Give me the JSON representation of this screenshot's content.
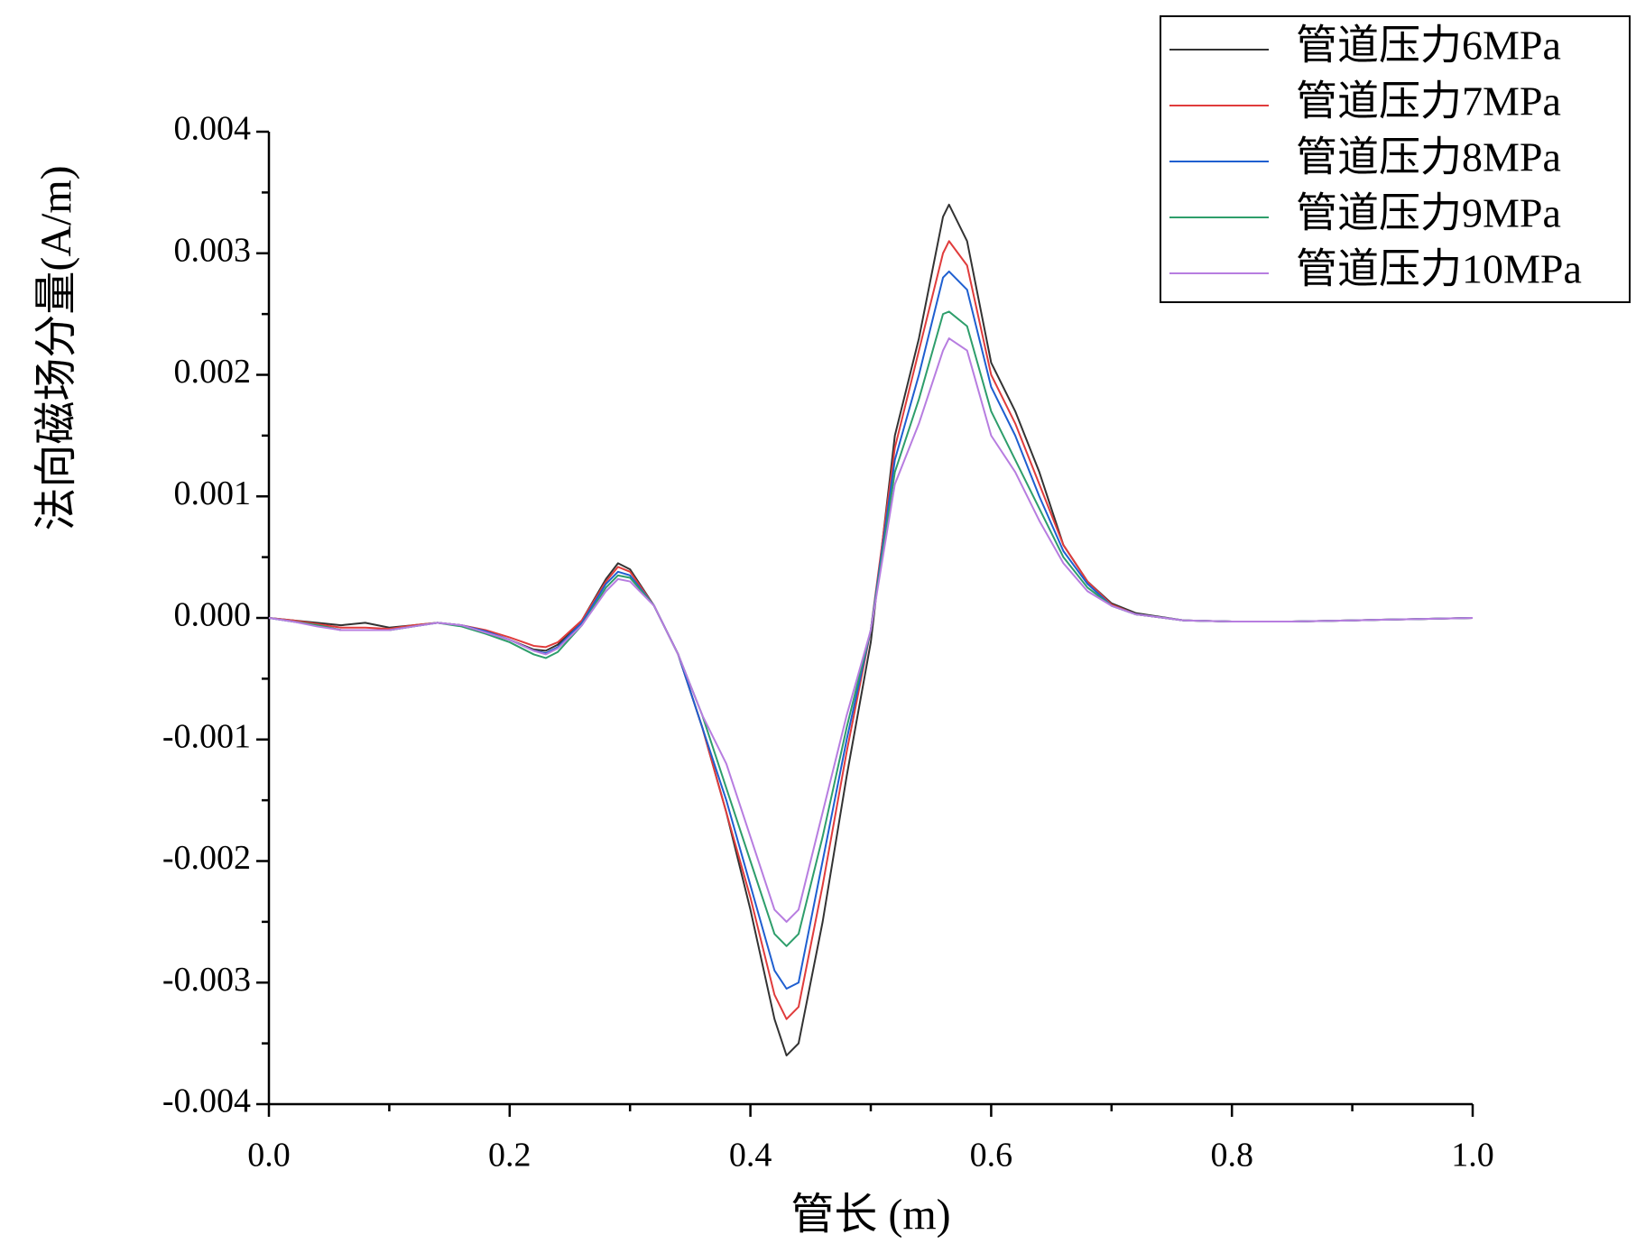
{
  "chart_data": {
    "type": "line",
    "x_label": "管长 (m)",
    "y_label": "法向磁场分量(A/m)",
    "xlim": [
      0,
      1
    ],
    "ylim": [
      -0.004,
      0.004
    ],
    "xticks": [
      {
        "value": 0,
        "label": "0.0"
      },
      0.2,
      0.4,
      0.6,
      0.8,
      {
        "value": 1,
        "label": "1.0"
      }
    ],
    "yticks": [
      -0.004,
      -0.003,
      -0.002,
      -0.001,
      {
        "value": 0,
        "label": "0.000"
      },
      0.001,
      0.002,
      0.003,
      0.004
    ],
    "legend": "upper right",
    "x": [
      0,
      0.02,
      0.04,
      0.06,
      0.08,
      0.1,
      0.12,
      0.14,
      0.16,
      0.18,
      0.2,
      0.22,
      0.23,
      0.24,
      0.26,
      0.28,
      0.29,
      0.3,
      0.32,
      0.34,
      0.36,
      0.38,
      0.4,
      0.42,
      0.43,
      0.44,
      0.46,
      0.48,
      0.5,
      0.52,
      0.54,
      0.56,
      0.565,
      0.58,
      0.6,
      0.62,
      0.64,
      0.66,
      0.68,
      0.7,
      0.72,
      0.76,
      0.8,
      0.85,
      0.9,
      0.95,
      1.0
    ],
    "series": [
      {
        "name": "管道压力6MPa",
        "color": "#333333",
        "values": [
          0,
          -2e-05,
          -4e-05,
          -6e-05,
          -4e-05,
          -8e-05,
          -6e-05,
          -4e-05,
          -6e-05,
          -0.00012,
          -0.00018,
          -0.00026,
          -0.00027,
          -0.00022,
          -2e-05,
          0.00032,
          0.00045,
          0.0004,
          0.0001,
          -0.0003,
          -0.0009,
          -0.0016,
          -0.0024,
          -0.0033,
          -0.0036,
          -0.0035,
          -0.0025,
          -0.0013,
          -0.0002,
          0.0015,
          0.0023,
          0.0033,
          0.0034,
          0.0031,
          0.0021,
          0.0017,
          0.0012,
          0.0006,
          0.0003,
          0.00012,
          4e-05,
          -2e-05,
          -3e-05,
          -3e-05,
          -2e-05,
          -1e-05,
          0
        ]
      },
      {
        "name": "管道压力7MPa",
        "color": "#e03c3c",
        "values": [
          0,
          -2e-05,
          -5e-05,
          -8e-05,
          -8e-05,
          -9e-05,
          -6e-05,
          -4e-05,
          -6e-05,
          -0.0001,
          -0.00016,
          -0.00023,
          -0.00024,
          -0.0002,
          -2e-05,
          0.0003,
          0.00042,
          0.00038,
          0.0001,
          -0.0003,
          -0.0009,
          -0.0016,
          -0.0023,
          -0.0031,
          -0.0033,
          -0.0032,
          -0.0022,
          -0.0011,
          -0.0001,
          0.0014,
          0.0022,
          0.003,
          0.0031,
          0.0029,
          0.002,
          0.0016,
          0.0011,
          0.0006,
          0.0003,
          0.00011,
          3e-05,
          -2e-05,
          -3e-05,
          -3e-05,
          -2e-05,
          -1e-05,
          0
        ]
      },
      {
        "name": "管道压力8MPa",
        "color": "#1f5fd0",
        "values": [
          0,
          -3e-05,
          -6e-05,
          -0.0001,
          -0.0001,
          -0.0001,
          -7e-05,
          -4e-05,
          -6e-05,
          -0.00011,
          -0.00018,
          -0.00027,
          -0.00029,
          -0.00024,
          -4e-05,
          0.00028,
          0.00038,
          0.00035,
          0.0001,
          -0.0003,
          -0.0009,
          -0.0015,
          -0.0022,
          -0.0029,
          -0.00305,
          -0.003,
          -0.002,
          -0.001,
          -0.0001,
          0.0013,
          0.002,
          0.0028,
          0.00285,
          0.0027,
          0.0019,
          0.0015,
          0.001,
          0.00055,
          0.00028,
          0.0001,
          3e-05,
          -2e-05,
          -3e-05,
          -3e-05,
          -2e-05,
          -1e-05,
          0
        ]
      },
      {
        "name": "管道压力9MPa",
        "color": "#2e9e6b",
        "values": [
          0,
          -3e-05,
          -6e-05,
          -0.0001,
          -0.0001,
          -0.0001,
          -7e-05,
          -4e-05,
          -7e-05,
          -0.00013,
          -0.0002,
          -0.0003,
          -0.00033,
          -0.00028,
          -6e-05,
          0.00025,
          0.00035,
          0.00033,
          0.0001,
          -0.0003,
          -0.0008,
          -0.0014,
          -0.002,
          -0.0026,
          -0.0027,
          -0.0026,
          -0.0018,
          -0.0009,
          -0.0001,
          0.0012,
          0.0018,
          0.0025,
          0.00252,
          0.0024,
          0.0017,
          0.0013,
          0.0009,
          0.0005,
          0.00025,
          0.0001,
          3e-05,
          -2e-05,
          -3e-05,
          -3e-05,
          -2e-05,
          -1e-05,
          0
        ]
      },
      {
        "name": "管道压力10MPa",
        "color": "#b77de0",
        "values": [
          0,
          -3e-05,
          -7e-05,
          -0.0001,
          -0.0001,
          -0.0001,
          -7e-05,
          -4e-05,
          -6e-05,
          -0.00012,
          -0.00018,
          -0.00027,
          -0.0003,
          -0.00025,
          -6e-05,
          0.00022,
          0.00032,
          0.0003,
          0.0001,
          -0.0003,
          -0.0008,
          -0.0012,
          -0.0018,
          -0.0024,
          -0.0025,
          -0.0024,
          -0.0016,
          -0.0008,
          -0.0001,
          0.0011,
          0.0016,
          0.0022,
          0.0023,
          0.0022,
          0.0015,
          0.0012,
          0.0008,
          0.00045,
          0.00022,
          0.0001,
          3e-05,
          -2e-05,
          -3e-05,
          -3e-05,
          -2e-05,
          -1e-05,
          0
        ]
      }
    ]
  }
}
